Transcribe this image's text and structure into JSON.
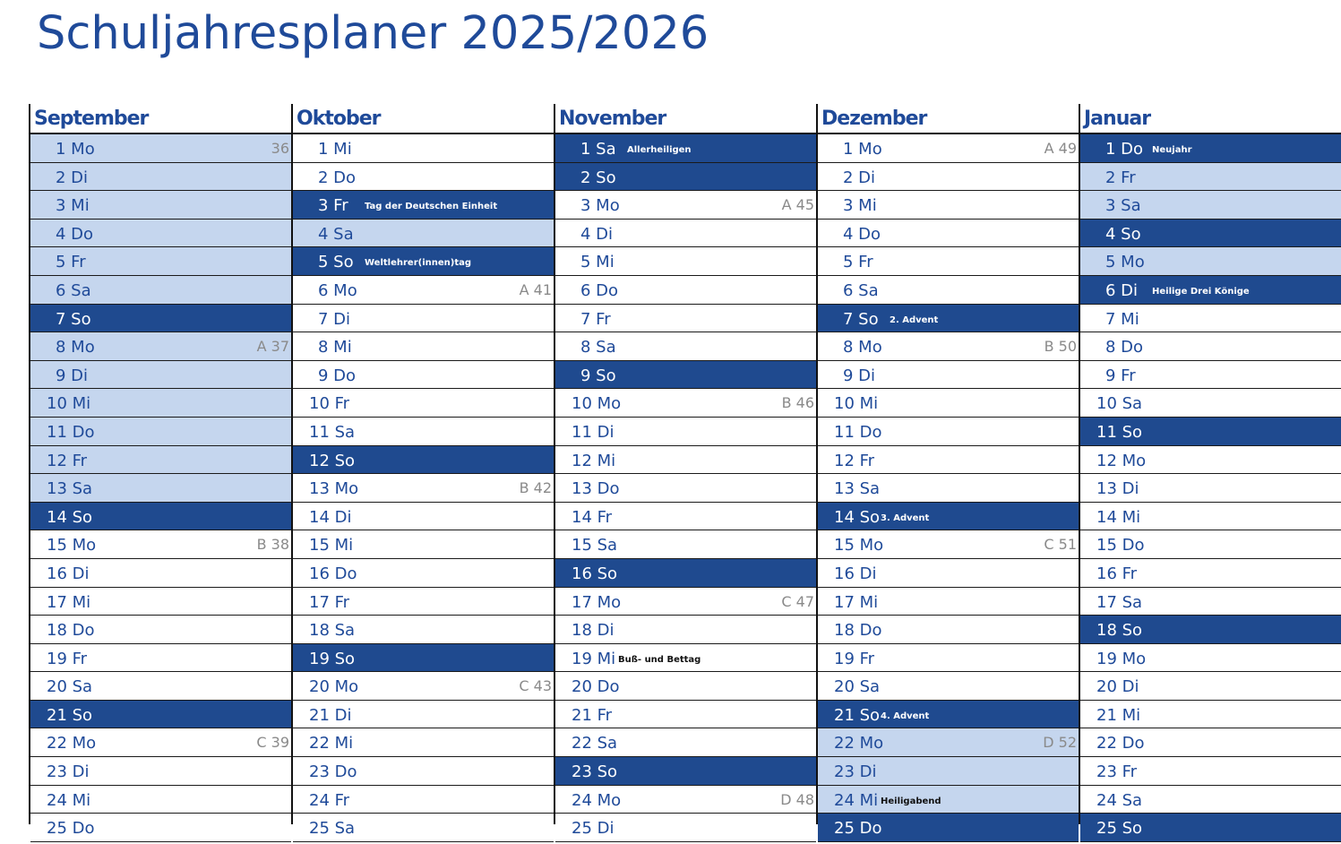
{
  "title": "Schuljahresplaner 2025/2026",
  "colors": {
    "accent": "#1f4a99",
    "dark_cell": "#1f4a8f",
    "light_cell": "#c5d6ee"
  },
  "months": [
    {
      "name": "September",
      "days": [
        {
          "label": "1 Mo",
          "type": "l",
          "week": "36"
        },
        {
          "label": "2 Di",
          "type": "l"
        },
        {
          "label": "3 Mi",
          "type": "l"
        },
        {
          "label": "4 Do",
          "type": "l"
        },
        {
          "label": "5 Fr",
          "type": "l"
        },
        {
          "label": "6 Sa",
          "type": "l"
        },
        {
          "label": "7 So",
          "type": "d"
        },
        {
          "label": "8 Mo",
          "type": "l",
          "week": "A 37"
        },
        {
          "label": "9 Di",
          "type": "l"
        },
        {
          "label": "10 Mi",
          "type": "l"
        },
        {
          "label": "11 Do",
          "type": "l"
        },
        {
          "label": "12 Fr",
          "type": "l"
        },
        {
          "label": "13 Sa",
          "type": "l"
        },
        {
          "label": "14 So",
          "type": "d"
        },
        {
          "label": "15 Mo",
          "type": "w",
          "week": "B 38"
        },
        {
          "label": "16 Di",
          "type": "w"
        },
        {
          "label": "17 Mi",
          "type": "w"
        },
        {
          "label": "18 Do",
          "type": "w"
        },
        {
          "label": "19 Fr",
          "type": "w"
        },
        {
          "label": "20 Sa",
          "type": "w"
        },
        {
          "label": "21 So",
          "type": "d"
        },
        {
          "label": "22 Mo",
          "type": "w",
          "week": "C 39"
        },
        {
          "label": "23 Di",
          "type": "w"
        },
        {
          "label": "24 Mi",
          "type": "w"
        },
        {
          "label": "25 Do",
          "type": "w"
        }
      ]
    },
    {
      "name": "Oktober",
      "days": [
        {
          "label": "1 Mi",
          "type": "w"
        },
        {
          "label": "2 Do",
          "type": "w"
        },
        {
          "label": "3 Fr",
          "type": "d",
          "note": "Tag der Deutschen Einheit"
        },
        {
          "label": "4 Sa",
          "type": "l"
        },
        {
          "label": "5 So",
          "type": "d",
          "note": "Weltlehrer(innen)tag"
        },
        {
          "label": "6 Mo",
          "type": "w",
          "week": "A 41"
        },
        {
          "label": "7 Di",
          "type": "w"
        },
        {
          "label": "8 Mi",
          "type": "w"
        },
        {
          "label": "9 Do",
          "type": "w"
        },
        {
          "label": "10 Fr",
          "type": "w"
        },
        {
          "label": "11 Sa",
          "type": "w"
        },
        {
          "label": "12 So",
          "type": "d"
        },
        {
          "label": "13 Mo",
          "type": "w",
          "week": "B 42"
        },
        {
          "label": "14 Di",
          "type": "w"
        },
        {
          "label": "15 Mi",
          "type": "w"
        },
        {
          "label": "16 Do",
          "type": "w"
        },
        {
          "label": "17 Fr",
          "type": "w"
        },
        {
          "label": "18 Sa",
          "type": "w"
        },
        {
          "label": "19 So",
          "type": "d"
        },
        {
          "label": "20 Mo",
          "type": "w",
          "week": "C 43"
        },
        {
          "label": "21 Di",
          "type": "w"
        },
        {
          "label": "22 Mi",
          "type": "w"
        },
        {
          "label": "23 Do",
          "type": "w"
        },
        {
          "label": "24 Fr",
          "type": "w"
        },
        {
          "label": "25 Sa",
          "type": "w"
        }
      ]
    },
    {
      "name": "November",
      "days": [
        {
          "label": "1 Sa",
          "type": "d",
          "note": "Allerheiligen"
        },
        {
          "label": "2 So",
          "type": "d"
        },
        {
          "label": "3 Mo",
          "type": "w",
          "week": "A 45"
        },
        {
          "label": "4 Di",
          "type": "w"
        },
        {
          "label": "5 Mi",
          "type": "w"
        },
        {
          "label": "6 Do",
          "type": "w"
        },
        {
          "label": "7 Fr",
          "type": "w"
        },
        {
          "label": "8 Sa",
          "type": "w"
        },
        {
          "label": "9 So",
          "type": "d"
        },
        {
          "label": "10 Mo",
          "type": "w",
          "week": "B 46"
        },
        {
          "label": "11 Di",
          "type": "w"
        },
        {
          "label": "12 Mi",
          "type": "w"
        },
        {
          "label": "13 Do",
          "type": "w"
        },
        {
          "label": "14 Fr",
          "type": "w"
        },
        {
          "label": "15 Sa",
          "type": "w"
        },
        {
          "label": "16 So",
          "type": "d"
        },
        {
          "label": "17 Mo",
          "type": "w",
          "week": "C 47"
        },
        {
          "label": "18 Di",
          "type": "w"
        },
        {
          "label": "19 Mi",
          "type": "w",
          "note": "Buß- und Bettag"
        },
        {
          "label": "20 Do",
          "type": "w"
        },
        {
          "label": "21 Fr",
          "type": "w"
        },
        {
          "label": "22 Sa",
          "type": "w"
        },
        {
          "label": "23 So",
          "type": "d"
        },
        {
          "label": "24 Mo",
          "type": "w",
          "week": "D 48"
        },
        {
          "label": "25 Di",
          "type": "w"
        }
      ]
    },
    {
      "name": "Dezember",
      "days": [
        {
          "label": "1 Mo",
          "type": "w",
          "week": "A 49"
        },
        {
          "label": "2 Di",
          "type": "w"
        },
        {
          "label": "3 Mi",
          "type": "w"
        },
        {
          "label": "4 Do",
          "type": "w"
        },
        {
          "label": "5 Fr",
          "type": "w"
        },
        {
          "label": "6 Sa",
          "type": "w"
        },
        {
          "label": "7 So",
          "type": "d",
          "note": "2. Advent"
        },
        {
          "label": "8 Mo",
          "type": "w",
          "week": "B 50"
        },
        {
          "label": "9 Di",
          "type": "w"
        },
        {
          "label": "10 Mi",
          "type": "w"
        },
        {
          "label": "11 Do",
          "type": "w"
        },
        {
          "label": "12 Fr",
          "type": "w"
        },
        {
          "label": "13 Sa",
          "type": "w"
        },
        {
          "label": "14 So",
          "type": "d",
          "note": "3. Advent"
        },
        {
          "label": "15 Mo",
          "type": "w",
          "week": "C 51"
        },
        {
          "label": "16 Di",
          "type": "w"
        },
        {
          "label": "17 Mi",
          "type": "w"
        },
        {
          "label": "18 Do",
          "type": "w"
        },
        {
          "label": "19 Fr",
          "type": "w"
        },
        {
          "label": "20 Sa",
          "type": "w"
        },
        {
          "label": "21 So",
          "type": "d",
          "note": "4. Advent"
        },
        {
          "label": "22 Mo",
          "type": "l",
          "week": "D 52"
        },
        {
          "label": "23 Di",
          "type": "l"
        },
        {
          "label": "24 Mi",
          "type": "l",
          "note": "Heiligabend"
        },
        {
          "label": "25 Do",
          "type": "d"
        }
      ]
    },
    {
      "name": "Januar",
      "days": [
        {
          "label": "1 Do",
          "type": "d",
          "note": "Neujahr"
        },
        {
          "label": "2 Fr",
          "type": "l"
        },
        {
          "label": "3 Sa",
          "type": "l"
        },
        {
          "label": "4 So",
          "type": "d"
        },
        {
          "label": "5 Mo",
          "type": "l"
        },
        {
          "label": "6 Di",
          "type": "d",
          "note": "Heilige Drei Könige"
        },
        {
          "label": "7 Mi",
          "type": "w"
        },
        {
          "label": "8 Do",
          "type": "w"
        },
        {
          "label": "9 Fr",
          "type": "w"
        },
        {
          "label": "10 Sa",
          "type": "w"
        },
        {
          "label": "11 So",
          "type": "d"
        },
        {
          "label": "12 Mo",
          "type": "w"
        },
        {
          "label": "13 Di",
          "type": "w"
        },
        {
          "label": "14 Mi",
          "type": "w"
        },
        {
          "label": "15 Do",
          "type": "w"
        },
        {
          "label": "16 Fr",
          "type": "w"
        },
        {
          "label": "17 Sa",
          "type": "w"
        },
        {
          "label": "18 So",
          "type": "d"
        },
        {
          "label": "19 Mo",
          "type": "w"
        },
        {
          "label": "20 Di",
          "type": "w"
        },
        {
          "label": "21 Mi",
          "type": "w"
        },
        {
          "label": "22 Do",
          "type": "w"
        },
        {
          "label": "23 Fr",
          "type": "w"
        },
        {
          "label": "24 Sa",
          "type": "w"
        },
        {
          "label": "25 So",
          "type": "d"
        }
      ]
    }
  ]
}
